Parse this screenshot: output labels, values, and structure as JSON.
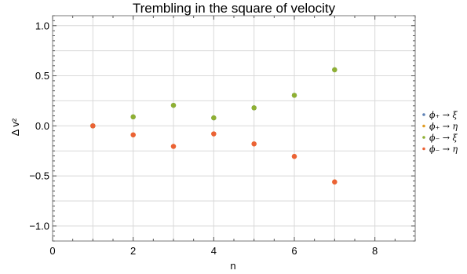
{
  "chart_data": {
    "type": "scatter",
    "title": "Trembling in the square of velocity",
    "xlabel": "n",
    "ylabel": "Δ v²",
    "xlim": [
      0,
      9
    ],
    "ylim": [
      -1.15,
      1.1
    ],
    "xticks": [
      0,
      2,
      4,
      6,
      8
    ],
    "yticks": [
      -1.0,
      -0.5,
      0.0,
      0.5,
      1.0
    ],
    "ytick_labels": [
      "−1.0",
      "−0.5",
      "0.0",
      "0.5",
      "1.0"
    ],
    "grid": true,
    "legend_position": "right",
    "series": [
      {
        "name": "ϕ₊ → ξ",
        "color": "#5e81b5",
        "x": [
          1,
          2,
          3,
          4,
          5,
          6,
          7
        ],
        "y": [
          0.0,
          0.09,
          0.205,
          0.08,
          0.18,
          0.305,
          0.56
        ]
      },
      {
        "name": "ϕ₊ → η",
        "color": "#e19c24",
        "x": [
          1,
          2,
          3,
          4,
          5,
          6,
          7
        ],
        "y": [
          0.0,
          -0.09,
          -0.205,
          -0.08,
          -0.18,
          -0.305,
          -0.56
        ]
      },
      {
        "name": "ϕ₋ → ξ",
        "color": "#8fb032",
        "x": [
          1,
          2,
          3,
          4,
          5,
          6,
          7
        ],
        "y": [
          0.0,
          0.09,
          0.205,
          0.08,
          0.18,
          0.305,
          0.56
        ]
      },
      {
        "name": "ϕ₋ → η",
        "color": "#eb6235",
        "x": [
          1,
          2,
          3,
          4,
          5,
          6,
          7
        ],
        "y": [
          0.0,
          -0.09,
          -0.205,
          -0.08,
          -0.18,
          -0.305,
          -0.56
        ]
      }
    ]
  }
}
